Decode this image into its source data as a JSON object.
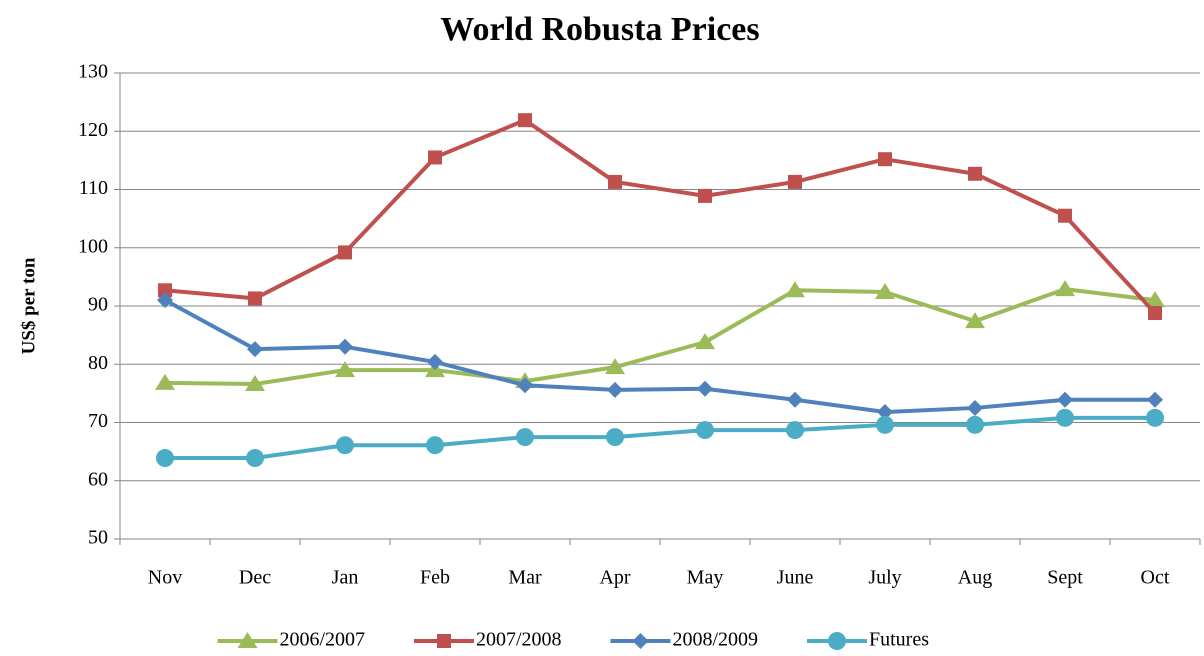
{
  "chart_data": {
    "type": "line",
    "title": "World Robusta Prices",
    "y_label": "US$ per ton",
    "categories": [
      "Nov",
      "Dec",
      "Jan",
      "Feb",
      "Mar",
      "Apr",
      "May",
      "June",
      "July",
      "Aug",
      "Sept",
      "Oct"
    ],
    "series": [
      {
        "name": "2006/2007",
        "color": "#9bbb59",
        "marker": "triangle",
        "values": [
          76.8,
          76.6,
          79.0,
          79.0,
          77.1,
          79.5,
          83.8,
          92.7,
          92.4,
          87.4,
          92.9,
          91.0
        ]
      },
      {
        "name": "2007/2008",
        "color": "#c0504d",
        "marker": "square",
        "values": [
          92.7,
          91.3,
          99.2,
          115.5,
          121.9,
          111.3,
          108.9,
          111.3,
          115.2,
          112.7,
          105.5,
          88.8
        ]
      },
      {
        "name": "2008/2009",
        "color": "#4f81bd",
        "marker": "diamond",
        "values": [
          91.0,
          82.6,
          83.0,
          80.4,
          76.4,
          75.6,
          75.8,
          73.9,
          71.8,
          72.5,
          73.9,
          73.9
        ]
      },
      {
        "name": "Futures",
        "color": "#4bacc6",
        "marker": "circle",
        "values": [
          63.9,
          63.9,
          66.1,
          66.1,
          67.5,
          67.5,
          68.7,
          68.7,
          69.6,
          69.6,
          70.8,
          70.8
        ]
      }
    ],
    "ylim": [
      50,
      130
    ],
    "yticks": [
      50,
      60,
      70,
      80,
      90,
      100,
      110,
      120,
      130
    ],
    "grid": true,
    "legend": "bottom"
  }
}
